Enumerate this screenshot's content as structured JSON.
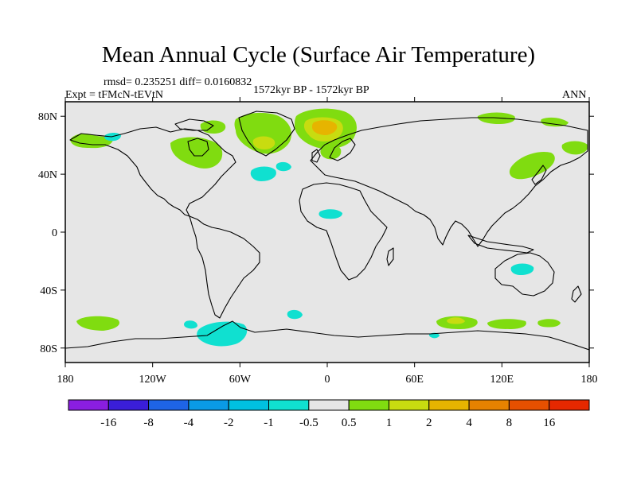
{
  "title": "Mean Annual Cycle (Surface Air Temperature)",
  "stats": "rmsd= 0.235251 diff= 0.0160832",
  "experiment": "Expt = tFMcN-tEVtN",
  "period": "1572kyr BP - 1572kyr BP",
  "season": "ANN",
  "map": {
    "ocean_color": "#e6e6e6",
    "lat_ticks": [
      "80N",
      "40N",
      "0",
      "40S",
      "80S"
    ],
    "lat_values": [
      80,
      40,
      0,
      -40,
      -80
    ],
    "lon_ticks": [
      "180",
      "120W",
      "60W",
      "0",
      "60E",
      "120E",
      "180"
    ],
    "lon_values": [
      -180,
      -120,
      -60,
      0,
      60,
      120,
      180
    ],
    "anomaly_regions": [
      {
        "region": "Alaska / NW Canada",
        "level": 1
      },
      {
        "region": "Central Canada",
        "level": 1
      },
      {
        "region": "Greenland",
        "level": 1
      },
      {
        "region": "Barents / Kara Sea",
        "level": 4
      },
      {
        "region": "Scandinavia",
        "level": 1
      },
      {
        "region": "Northern Siberia",
        "level": 1
      },
      {
        "region": "NE Asia / Japan",
        "level": 1
      },
      {
        "region": "Bering Sea",
        "level": -0.5
      },
      {
        "region": "North Atlantic",
        "level": -0.5
      },
      {
        "region": "North Africa",
        "level": -0.5
      },
      {
        "region": "Australia",
        "level": -0.5
      },
      {
        "region": "Weddell Sea",
        "level": -1
      },
      {
        "region": "South Atlantic",
        "level": -0.5
      },
      {
        "region": "Southern Ocean (Indian sector)",
        "level": 2
      },
      {
        "region": "Ross Sea",
        "level": 1
      }
    ]
  },
  "legend": {
    "labels": [
      "-16",
      "-8",
      "-4",
      "-2",
      "-1",
      "-0.5",
      "0.5",
      "1",
      "2",
      "4",
      "8",
      "16"
    ],
    "colors": [
      "#8a1ee0",
      "#3a1ed8",
      "#1e64e6",
      "#0a9ae6",
      "#00c0e0",
      "#10e0d0",
      "#e6e6e6",
      "#80dc10",
      "#c8dc10",
      "#e6b400",
      "#e68200",
      "#e65000",
      "#e62800"
    ]
  }
}
